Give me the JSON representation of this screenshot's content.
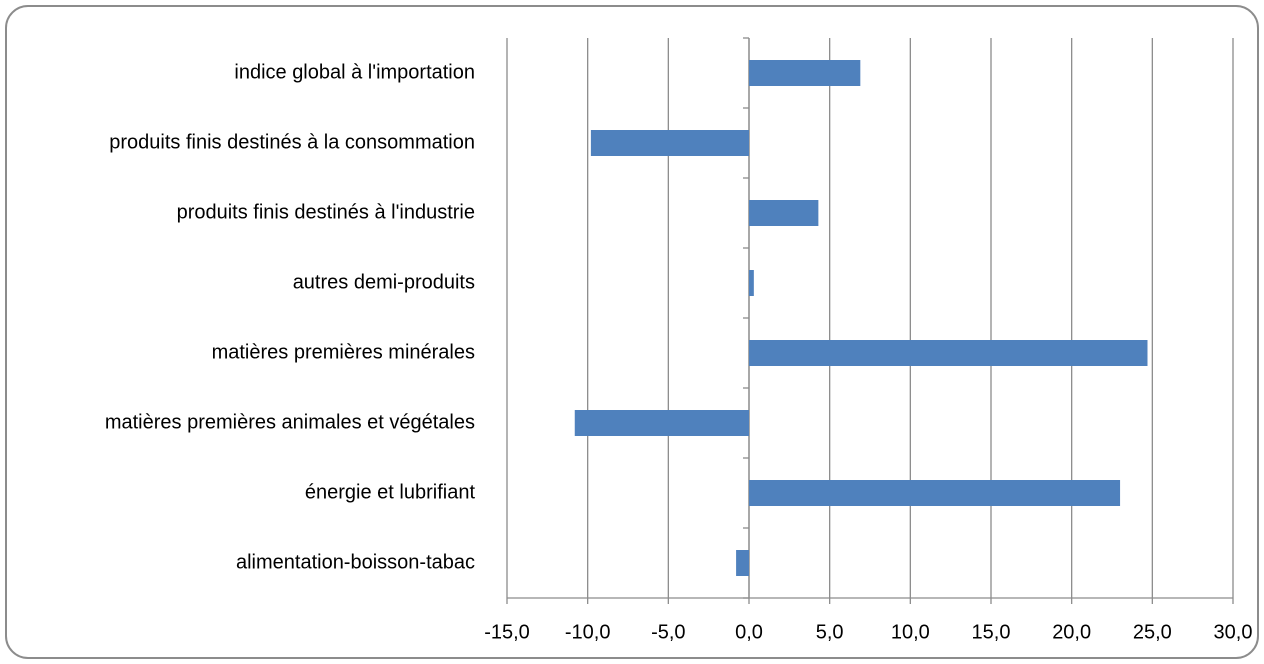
{
  "chart_data": {
    "type": "hbar",
    "categories": [
      "indice global à l'importation",
      "produits finis destinés à la consommation",
      "produits finis destinés à l'industrie",
      "autres demi-produits",
      "matières premières minérales",
      "matières premières animales et végétales",
      "énergie et lubrifiant",
      "alimentation-boisson-tabac"
    ],
    "values": [
      6.9,
      -9.8,
      4.3,
      0.3,
      24.7,
      -10.8,
      23.0,
      -0.8
    ],
    "color": "#4f81bd",
    "xlim": [
      -15,
      30
    ],
    "xticks": [
      {
        "value": -15,
        "label": "-15,0"
      },
      {
        "value": -10,
        "label": "-10,0"
      },
      {
        "value": -5,
        "label": "-5,0"
      },
      {
        "value": 0,
        "label": "0,0"
      },
      {
        "value": 5,
        "label": "5,0"
      },
      {
        "value": 10,
        "label": "10,0"
      },
      {
        "value": 15,
        "label": "15,0"
      },
      {
        "value": 20,
        "label": "20,0"
      },
      {
        "value": 25,
        "label": "25,0"
      },
      {
        "value": 30,
        "label": "30,0"
      }
    ],
    "grid": true
  }
}
